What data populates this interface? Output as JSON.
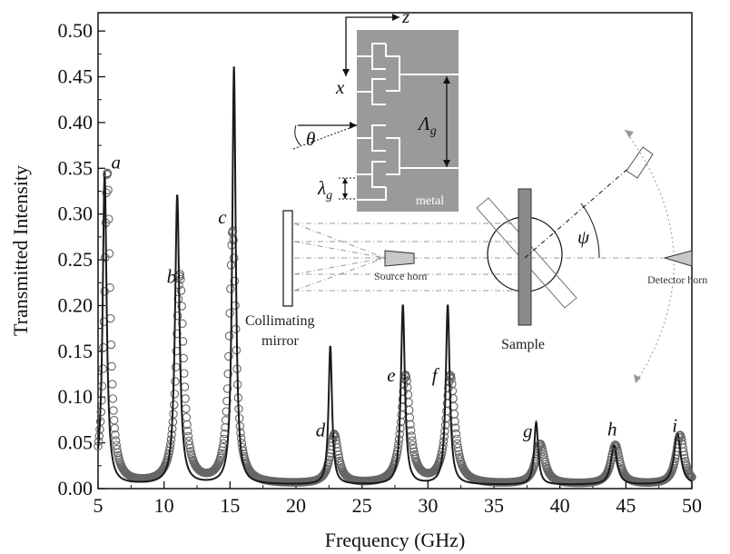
{
  "chart_data": {
    "type": "line",
    "xlabel": "Frequency (GHz)",
    "ylabel": "Transmitted Intensity",
    "xlim": [
      5,
      50
    ],
    "ylim": [
      0,
      0.52
    ],
    "x_ticks": [
      "5",
      "10",
      "15",
      "20",
      "25",
      "30",
      "35",
      "40",
      "45",
      "50"
    ],
    "y_ticks": [
      "0.00",
      "0.05",
      "0.10",
      "0.15",
      "0.20",
      "0.25",
      "0.30",
      "0.35",
      "0.40",
      "0.45",
      "0.50"
    ],
    "grid": false,
    "series": [
      {
        "style": "solid line",
        "color": "#1a1a1a",
        "peaks": [
          {
            "x": 5.5,
            "y": 0.345
          },
          {
            "x": 11.0,
            "y": 0.32
          },
          {
            "x": 15.3,
            "y": 0.46
          },
          {
            "x": 22.6,
            "y": 0.155
          },
          {
            "x": 28.1,
            "y": 0.2
          },
          {
            "x": 31.5,
            "y": 0.2
          },
          {
            "x": 38.2,
            "y": 0.072
          },
          {
            "x": 44.1,
            "y": 0.047
          },
          {
            "x": 48.9,
            "y": 0.06
          }
        ]
      },
      {
        "style": "open circles",
        "color": "#666666",
        "peaks": [
          {
            "x": 5.7,
            "y": 0.345
          },
          {
            "x": 11.2,
            "y": 0.232
          },
          {
            "x": 15.2,
            "y": 0.28
          },
          {
            "x": 22.9,
            "y": 0.058
          },
          {
            "x": 28.3,
            "y": 0.122
          },
          {
            "x": 31.7,
            "y": 0.122
          },
          {
            "x": 38.5,
            "y": 0.048
          },
          {
            "x": 44.2,
            "y": 0.047
          },
          {
            "x": 49.1,
            "y": 0.058
          }
        ]
      }
    ],
    "peak_labels": [
      {
        "text": "a",
        "x": 6.0,
        "y": 0.35
      },
      {
        "text": "b",
        "x": 10.2,
        "y": 0.225
      },
      {
        "text": "c",
        "x": 14.1,
        "y": 0.29
      },
      {
        "text": "d",
        "x": 21.5,
        "y": 0.057
      },
      {
        "text": "e",
        "x": 26.9,
        "y": 0.117
      },
      {
        "text": "f",
        "x": 30.3,
        "y": 0.117
      },
      {
        "text": "g",
        "x": 37.2,
        "y": 0.056
      },
      {
        "text": "h",
        "x": 43.6,
        "y": 0.058
      },
      {
        "text": "i",
        "x": 48.5,
        "y": 0.062
      }
    ]
  },
  "inset": {
    "axis_z": "z",
    "axis_x": "x",
    "angle_theta": "θ",
    "period_symbol": "Λ",
    "period_subscript": "g",
    "wavelength_symbol": "λ",
    "wavelength_subscript": "g",
    "metal_label": "metal",
    "mirror_label_line1": "Collimating",
    "mirror_label_line2": "mirror",
    "source_label": "Source horn",
    "detector_label": "Detector horn",
    "sample_label": "Sample",
    "angle_psi": "ψ"
  }
}
